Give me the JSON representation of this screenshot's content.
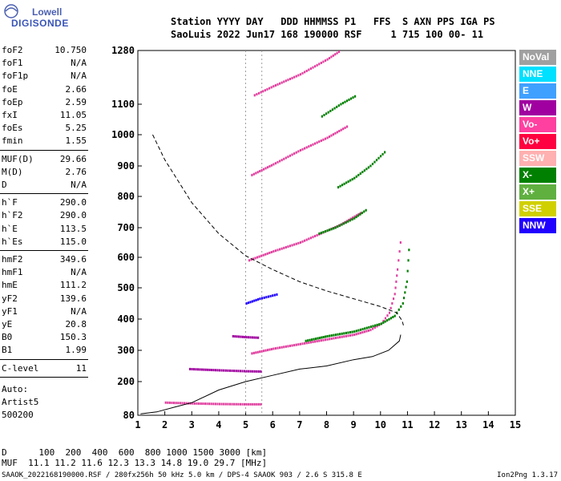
{
  "logo": {
    "line1": "Lowell",
    "line2": "DIGISONDE"
  },
  "header": {
    "line1": "Station YYYY DAY   DDD HHMMSS P1   FFS  S AXN PPS IGA PS",
    "line2": "SaoLuis 2022 Jun17 168 190000 RSF     1 715 100 00- 11"
  },
  "params": [
    {
      "k": "foF2",
      "v": "10.750"
    },
    {
      "k": "foF1",
      "v": "N/A"
    },
    {
      "k": "foF1p",
      "v": "N/A"
    },
    {
      "k": "foE",
      "v": "2.66"
    },
    {
      "k": "foEp",
      "v": "2.59"
    },
    {
      "k": "fxI",
      "v": "11.05"
    },
    {
      "k": "foEs",
      "v": "5.25"
    },
    {
      "k": "fmin",
      "v": "1.55"
    },
    {
      "k": "MUF(D)",
      "v": "29.66"
    },
    {
      "k": "M(D)",
      "v": "2.76"
    },
    {
      "k": "D",
      "v": "N/A"
    },
    {
      "k": "h`F",
      "v": "290.0"
    },
    {
      "k": "h`F2",
      "v": "290.0"
    },
    {
      "k": "h`E",
      "v": "113.5"
    },
    {
      "k": "h`Es",
      "v": "115.0"
    },
    {
      "k": "hmF2",
      "v": "349.6"
    },
    {
      "k": "hmF1",
      "v": "N/A"
    },
    {
      "k": "hmE",
      "v": "111.2"
    },
    {
      "k": "yF2",
      "v": "139.6"
    },
    {
      "k": "yF1",
      "v": "N/A"
    },
    {
      "k": "yE",
      "v": "20.8"
    },
    {
      "k": "B0",
      "v": "150.3"
    },
    {
      "k": "B1",
      "v": "1.99"
    },
    {
      "k": "C-level",
      "v": "11"
    }
  ],
  "autoscale": {
    "label": "Auto:",
    "artist": "Artist5",
    "version": "500200"
  },
  "muf_table": {
    "d_line": "D      100  200  400  600  800 1000 1500 3000 [km]",
    "muf_line": "MUF  11.1 11.2 11.6 12.3 13.3 14.8 19.0 29.7 [MHz]"
  },
  "footer": {
    "text": "SAAOK_2022168190000.RSF / 280fx256h 50 kHz 5.0 km / DPS-4 SAAOK 903 / 2.6 S 315.8 E",
    "version": "Ion2Png 1.3.17"
  },
  "legend": [
    {
      "label": "NoVal",
      "color": "#a0a0a0"
    },
    {
      "label": "NNE",
      "color": "#00e0ff"
    },
    {
      "label": "E",
      "color": "#40a0ff"
    },
    {
      "label": "W",
      "color": "#a000a0"
    },
    {
      "label": "Vo-",
      "color": "#ff40a0"
    },
    {
      "label": "Vo+",
      "color": "#ff0040"
    },
    {
      "label": "SSW",
      "color": "#ffb0b0"
    },
    {
      "label": "X-",
      "color": "#008000"
    },
    {
      "label": "X+",
      "color": "#60b040"
    },
    {
      "label": "SSE",
      "color": "#d0d000"
    },
    {
      "label": "NNW",
      "color": "#2000ff"
    }
  ],
  "chart_data": {
    "type": "scatter",
    "xlabel": "",
    "ylabel": "",
    "xlim": [
      1,
      15
    ],
    "ylim": [
      80,
      1280
    ],
    "xticks": [
      1,
      2,
      3,
      4,
      5,
      6,
      7,
      8,
      9,
      10,
      11,
      12,
      13,
      14,
      15
    ],
    "yticks": [
      80,
      200,
      300,
      400,
      500,
      600,
      700,
      800,
      900,
      1000,
      1100,
      1280
    ],
    "reference_x": [
      5,
      5.6
    ],
    "traces": [
      {
        "name": "F O-trace",
        "color": "#e040a0",
        "points": [
          [
            5.2,
            290
          ],
          [
            6,
            305
          ],
          [
            7,
            320
          ],
          [
            8,
            335
          ],
          [
            9,
            350
          ],
          [
            9.6,
            365
          ],
          [
            10,
            385
          ],
          [
            10.3,
            420
          ],
          [
            10.5,
            480
          ],
          [
            10.6,
            560
          ],
          [
            10.75,
            680
          ]
        ]
      },
      {
        "name": "F X-trace",
        "color": "#008000",
        "points": [
          [
            7.2,
            330
          ],
          [
            8,
            345
          ],
          [
            9,
            360
          ],
          [
            10,
            385
          ],
          [
            10.5,
            410
          ],
          [
            10.8,
            450
          ],
          [
            10.95,
            520
          ],
          [
            11.05,
            660
          ]
        ]
      },
      {
        "name": "2F O-trace",
        "color": "#e040a0",
        "points": [
          [
            5.1,
            590
          ],
          [
            6,
            620
          ],
          [
            7,
            650
          ],
          [
            8,
            690
          ],
          [
            8.5,
            710
          ],
          [
            9.3,
            750
          ]
        ]
      },
      {
        "name": "2F X-trace",
        "color": "#008000",
        "points": [
          [
            7.7,
            680
          ],
          [
            8.3,
            700
          ],
          [
            9,
            730
          ],
          [
            9.5,
            760
          ]
        ]
      },
      {
        "name": "3F O-trace",
        "color": "#e040a0",
        "points": [
          [
            5.2,
            870
          ],
          [
            6,
            905
          ],
          [
            7,
            950
          ],
          [
            8,
            990
          ],
          [
            8.8,
            1030
          ]
        ]
      },
      {
        "name": "3F X-trace",
        "color": "#008000",
        "points": [
          [
            8.4,
            830
          ],
          [
            9,
            860
          ],
          [
            9.6,
            900
          ],
          [
            10.2,
            950
          ]
        ]
      },
      {
        "name": "4F O-trace",
        "color": "#e040a0",
        "points": [
          [
            5.3,
            1130
          ],
          [
            6,
            1160
          ],
          [
            7,
            1200
          ],
          [
            8,
            1250
          ],
          [
            8.5,
            1280
          ]
        ]
      },
      {
        "name": "4F X-trace",
        "color": "#008000",
        "points": [
          [
            7.8,
            1060
          ],
          [
            8.5,
            1100
          ],
          [
            9.1,
            1130
          ]
        ]
      },
      {
        "name": "Es",
        "color": "#e040a0",
        "points": [
          [
            2,
            125
          ],
          [
            3,
            122
          ],
          [
            4,
            120
          ],
          [
            5,
            119
          ],
          [
            5.6,
            119
          ]
        ]
      },
      {
        "name": "2Es",
        "color": "#a000a0",
        "points": [
          [
            2.9,
            240
          ],
          [
            4,
            236
          ],
          [
            5,
            233
          ],
          [
            5.6,
            232
          ]
        ]
      },
      {
        "name": "3Es",
        "color": "#a000a0",
        "points": [
          [
            4.5,
            345
          ],
          [
            5,
            342
          ],
          [
            5.5,
            340
          ]
        ]
      },
      {
        "name": "Es band",
        "color": "#2000ff",
        "points": [
          [
            5,
            450
          ],
          [
            5.5,
            465
          ],
          [
            6.2,
            480
          ]
        ]
      }
    ],
    "profile_curve": [
      [
        1.1,
        85
      ],
      [
        1.7,
        92
      ],
      [
        2.4,
        110
      ],
      [
        3,
        125
      ],
      [
        4,
        170
      ],
      [
        5,
        200
      ],
      [
        6,
        220
      ],
      [
        7,
        240
      ],
      [
        8,
        250
      ],
      [
        9,
        270
      ],
      [
        9.7,
        280
      ],
      [
        10.3,
        300
      ],
      [
        10.7,
        330
      ],
      [
        10.75,
        350
      ]
    ],
    "muf_curve": [
      [
        1.55,
        1000
      ],
      [
        2,
        920
      ],
      [
        3,
        780
      ],
      [
        4,
        680
      ],
      [
        5,
        605
      ],
      [
        6,
        560
      ],
      [
        7,
        520
      ],
      [
        8,
        490
      ],
      [
        9,
        465
      ],
      [
        10,
        440
      ],
      [
        10.6,
        420
      ],
      [
        10.8,
        395
      ],
      [
        10.85,
        380
      ]
    ]
  }
}
